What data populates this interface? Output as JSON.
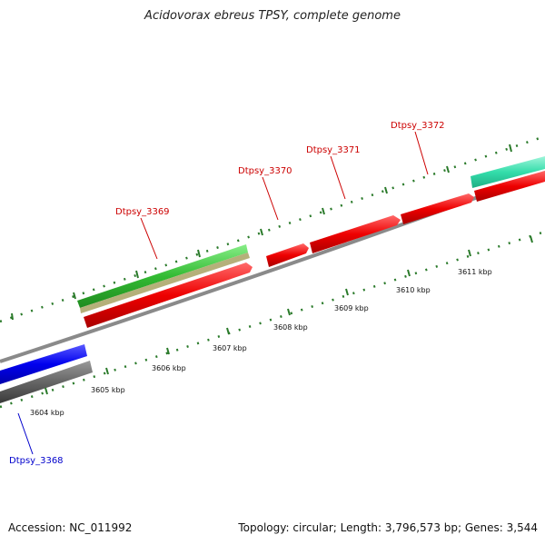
{
  "title": "Acidovorax ebreus TPSY, complete genome",
  "footer": {
    "accession": "Accession: NC_011992",
    "summary": "Topology: circular; Length: 3,796,573 bp; Genes: 3,544"
  },
  "scale_labels": [
    "3604 kbp",
    "3605 kbp",
    "3606 kbp",
    "3607 kbp",
    "3608 kbp",
    "3609 kbp",
    "3610 kbp",
    "3611 kbp"
  ],
  "gene_labels": [
    {
      "text": "Dtpsy_3368",
      "color": "#0000cc"
    },
    {
      "text": "Dtpsy_3369",
      "color": "#cc0000"
    },
    {
      "text": "Dtpsy_3370",
      "color": "#cc0000"
    },
    {
      "text": "Dtpsy_3371",
      "color": "#cc0000"
    },
    {
      "text": "Dtpsy_3372",
      "color": "#cc0000"
    }
  ],
  "colors": {
    "backbone": "#888888",
    "forward_cds": "#ee0000",
    "reverse_cds": "#0000ee",
    "rna_green": "#33bb33",
    "rna_khaki": "#b5b07a",
    "teal": "#33ddaa",
    "dark_gray": "#666666",
    "tick": "#2a7a2a"
  }
}
